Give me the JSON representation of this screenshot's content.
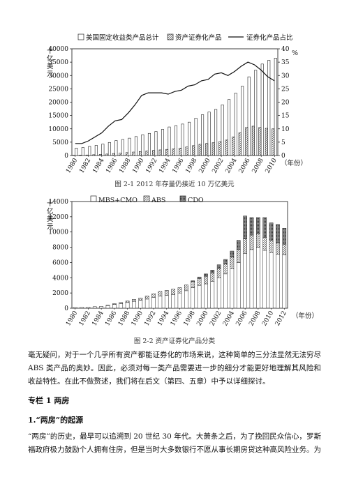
{
  "chart_data": [
    {
      "type": "bar",
      "title": "",
      "legend": [
        "美国固定收益类产品总计",
        "资产证券化产品",
        "证券化产品占比"
      ],
      "legend_position": "top",
      "ylabel": "十亿美元",
      "y2label": "%",
      "xlabel": "（年份）",
      "ylim": [
        0,
        40000
      ],
      "y2lim": [
        0,
        40
      ],
      "yticks": [
        "0",
        "5000",
        "10000",
        "15000",
        "20000",
        "25000",
        "30000",
        "35000",
        "40000"
      ],
      "y2ticks": [
        "0",
        "5",
        "10",
        "15",
        "20",
        "25",
        "30",
        "35",
        "40"
      ],
      "xtick_labels": [
        "1980",
        "1982",
        "1984",
        "1986",
        "1988",
        "1990",
        "1992",
        "1994",
        "1996",
        "1998",
        "2000",
        "2002",
        "2004",
        "2006",
        "2008",
        "2010"
      ],
      "x": [
        1980,
        1981,
        1982,
        1983,
        1984,
        1985,
        1986,
        1987,
        1988,
        1989,
        1990,
        1991,
        1992,
        1993,
        1994,
        1995,
        1996,
        1997,
        1998,
        1999,
        2000,
        2001,
        2002,
        2003,
        2004,
        2005,
        2006,
        2007,
        2008,
        2009,
        2010
      ],
      "series": [
        {
          "name": "美国固定收益类产品总计",
          "kind": "bar",
          "values": [
            2800,
            3000,
            3400,
            3800,
            4300,
            4900,
            5600,
            6000,
            6500,
            7100,
            7800,
            8300,
            9000,
            9800,
            10700,
            11200,
            11800,
            12500,
            14000,
            15300,
            16300,
            17300,
            19000,
            21000,
            23400,
            26000,
            29500,
            32000,
            34300,
            35700,
            36500
          ]
        },
        {
          "name": "资产证券化产品",
          "kind": "bar",
          "values": [
            100,
            150,
            200,
            300,
            400,
            550,
            750,
            900,
            1100,
            1300,
            1500,
            1700,
            1900,
            2100,
            2300,
            2500,
            2800,
            3200,
            3700,
            4200,
            4500,
            4800,
            5200,
            5800,
            7000,
            8500,
            10500,
            11000,
            10500,
            10200,
            10000
          ]
        },
        {
          "name": "证券化产品占比",
          "kind": "line",
          "axis": "right",
          "values": [
            4.5,
            4.5,
            5.5,
            7,
            8.5,
            11,
            13,
            13.5,
            16,
            19,
            22.5,
            23.5,
            23.5,
            23.5,
            23,
            24,
            24.5,
            26,
            26.5,
            28,
            28.5,
            30.5,
            31,
            30,
            31.5,
            33.5,
            35,
            34,
            32,
            29.5,
            28
          ]
        }
      ]
    },
    {
      "type": "bar",
      "stacked": true,
      "title": "",
      "legend": [
        "MBS+CMO",
        "ABS",
        "CDO"
      ],
      "legend_position": "top",
      "ylabel": "十亿美元",
      "xlabel": "（年份）",
      "ylim": [
        0,
        14000
      ],
      "yticks": [
        "0",
        "2000",
        "4000",
        "6000",
        "8000",
        "10000",
        "12000",
        "14000"
      ],
      "xtick_labels": [
        "1980",
        "1982",
        "1984",
        "1986",
        "1988",
        "1990",
        "1992",
        "1994",
        "1996",
        "1998",
        "2000",
        "2002",
        "2004",
        "2006",
        "2008",
        "2010",
        "2012"
      ],
      "x": [
        1980,
        1981,
        1982,
        1983,
        1984,
        1985,
        1986,
        1987,
        1988,
        1989,
        1990,
        1991,
        1992,
        1993,
        1994,
        1995,
        1996,
        1997,
        1998,
        1999,
        2000,
        2001,
        2002,
        2003,
        2004,
        2005,
        2006,
        2007,
        2008,
        2009,
        2010,
        2011,
        2012
      ],
      "series": [
        {
          "name": "MBS+CMO",
          "values": [
            100,
            120,
            150,
            200,
            250,
            350,
            500,
            600,
            750,
            900,
            1050,
            1200,
            1400,
            1600,
            1700,
            1800,
            2000,
            2300,
            2700,
            3000,
            3200,
            3500,
            4000,
            4500,
            5200,
            6000,
            7200,
            7700,
            8000,
            7600,
            7300,
            7100,
            7000
          ]
        },
        {
          "name": "ABS",
          "values": [
            0,
            0,
            0,
            0,
            0,
            50,
            100,
            150,
            200,
            250,
            300,
            400,
            500,
            600,
            650,
            700,
            700,
            750,
            800,
            900,
            1000,
            1100,
            1200,
            1300,
            1500,
            1700,
            1900,
            1900,
            1800,
            1700,
            1600,
            1500,
            1400
          ]
        },
        {
          "name": "CDO",
          "values": [
            0,
            0,
            0,
            0,
            0,
            0,
            0,
            0,
            0,
            0,
            0,
            0,
            0,
            0,
            0,
            0,
            0,
            0,
            100,
            200,
            300,
            400,
            500,
            600,
            800,
            1200,
            3000,
            2300,
            2100,
            2600,
            2300,
            2400,
            2100
          ]
        }
      ]
    }
  ],
  "captions": {
    "fig1": "图 2-1  2012 年存量仍接近 10 万亿美元",
    "fig2": "图 2-2  资产证券化产品分类"
  },
  "body": {
    "para1": "毫无疑问，对于一个几乎所有资产都能证券化的市场来说，这种简单的三分法显然无法穷尽 ABS 类产品的奥妙。因此，必须对每一类产品需要进一步的细分才能更好地理解其风险和收益特性。在此不做赘述，我们将在后文（第四、五章）中予以详细探讨。",
    "heading1": "专栏 1  两房",
    "heading2": "1.“两房”的起源",
    "para2": "“两房”的历史，最早可以追溯到 20 世纪 30 年代。大萧条之后，为了挽回民众信心，罗斯福政府极力鼓励个人拥有住房，但是当时大多数银行不愿从事长期房贷这种高风险业务。为"
  }
}
